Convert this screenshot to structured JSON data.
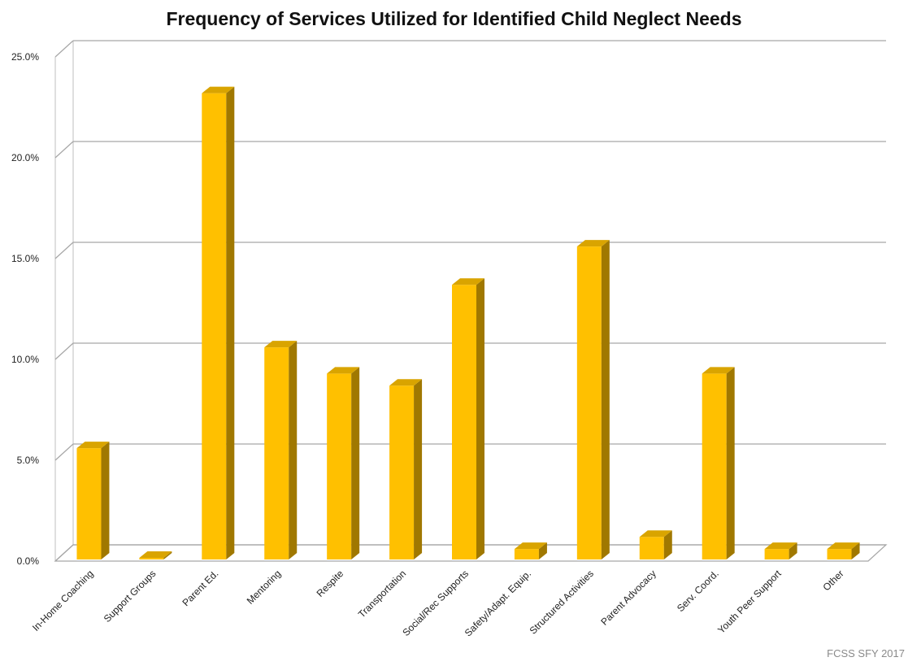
{
  "chart_data": {
    "type": "bar",
    "title": "Frequency of Services Utilized for Identified Child Neglect Needs",
    "xlabel": "",
    "ylabel": "",
    "ylim": [
      0,
      25
    ],
    "y_tick_labels": [
      "0.0%",
      "5.0%",
      "10.0%",
      "15.0%",
      "20.0%",
      "25.0%"
    ],
    "categories": [
      "In-Home Coaching",
      "Support Groups",
      "Parent Ed.",
      "Mentoring",
      "Respite",
      "Transportation",
      "Social/Rec Supports",
      "Safety/Adapt. Equip.",
      "Structured Activities",
      "Parent Advocacy",
      "Serv. Coord.",
      "Youth Peer Support",
      "Other"
    ],
    "values": [
      5.6,
      0.0,
      23.2,
      10.6,
      9.3,
      8.7,
      13.7,
      0.6,
      15.6,
      1.2,
      9.3,
      0.6,
      0.6
    ],
    "grid": true,
    "legend": "none",
    "bar_color": "#FFC000",
    "bar_side_color": "#A07800",
    "bar_top_color": "#D9A400"
  },
  "source_note": "FCSS SFY 2017"
}
